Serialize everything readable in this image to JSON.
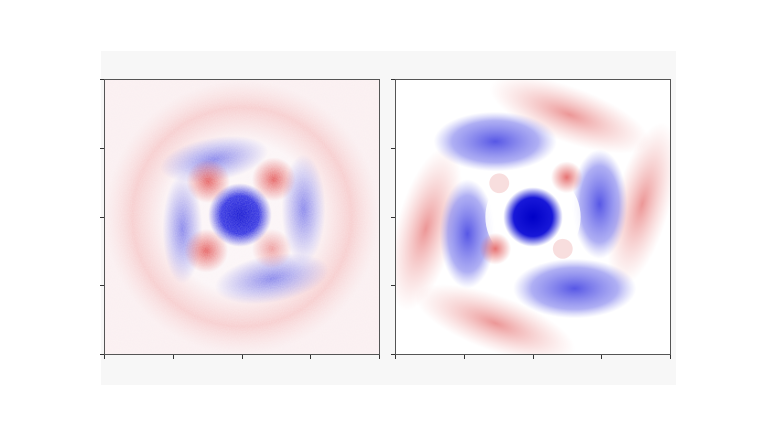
{
  "figure": {
    "panels": [
      {
        "id": "left",
        "description_key": "noisy-quasiparticle-interference-map",
        "colormap": {
          "negative": "#1515d6",
          "zero": "#ffffff",
          "positive": "#d42020"
        },
        "noisy": true
      },
      {
        "id": "right",
        "description_key": "smooth-simulated-map",
        "colormap": {
          "negative": "#1515d6",
          "zero": "#ffffff",
          "positive": "#d42020"
        },
        "noisy": false
      }
    ],
    "axis_ticks": {
      "x_count": 5,
      "y_count": 5,
      "tick_labels_shown": false
    }
  }
}
